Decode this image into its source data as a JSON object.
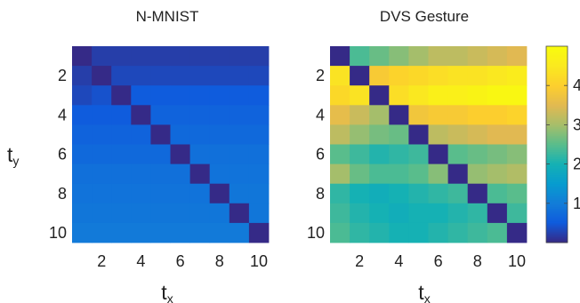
{
  "chart_data": [
    {
      "type": "heatmap",
      "title": "N-MNIST",
      "xlabel": "t",
      "xlabel_sub": "x",
      "ylabel": "t",
      "ylabel_sub": "y",
      "x_ticks": [
        "2",
        "4",
        "6",
        "8",
        "10"
      ],
      "y_ticks": [
        "2",
        "4",
        "6",
        "8",
        "10"
      ],
      "size": 10,
      "colormap": "parula",
      "clim": [
        0,
        5
      ],
      "values": [
        [
          0.0,
          0.2,
          0.2,
          0.2,
          0.2,
          0.2,
          0.2,
          0.2,
          0.2,
          0.2
        ],
        [
          0.2,
          0.0,
          0.3,
          0.3,
          0.3,
          0.3,
          0.3,
          0.3,
          0.3,
          0.3
        ],
        [
          0.3,
          0.4,
          0.0,
          0.5,
          0.5,
          0.5,
          0.5,
          0.5,
          0.5,
          0.5
        ],
        [
          0.5,
          0.5,
          0.5,
          0.0,
          0.6,
          0.6,
          0.6,
          0.6,
          0.6,
          0.6
        ],
        [
          0.6,
          0.6,
          0.6,
          0.6,
          0.0,
          0.7,
          0.7,
          0.7,
          0.7,
          0.7
        ],
        [
          0.7,
          0.7,
          0.7,
          0.7,
          0.7,
          0.0,
          0.8,
          0.8,
          0.8,
          0.8
        ],
        [
          0.8,
          0.8,
          0.8,
          0.8,
          0.8,
          0.8,
          0.0,
          0.85,
          0.85,
          0.85
        ],
        [
          0.85,
          0.85,
          0.85,
          0.85,
          0.85,
          0.85,
          0.85,
          0.0,
          0.9,
          0.9
        ],
        [
          0.9,
          0.9,
          0.9,
          0.9,
          0.9,
          0.9,
          0.9,
          0.9,
          0.0,
          0.9
        ],
        [
          0.95,
          0.95,
          0.95,
          0.95,
          0.95,
          0.95,
          0.95,
          0.95,
          0.95,
          0.0
        ]
      ]
    },
    {
      "type": "heatmap",
      "title": "DVS Gesture",
      "xlabel": "t",
      "xlabel_sub": "x",
      "x_ticks": [
        "2",
        "4",
        "6",
        "8",
        "10"
      ],
      "y_ticks": [
        "2",
        "4",
        "6",
        "8",
        "10"
      ],
      "size": 10,
      "colormap": "parula",
      "clim": [
        0,
        5
      ],
      "values": [
        [
          0.0,
          2.4,
          2.6,
          2.8,
          3.0,
          3.2,
          3.2,
          3.3,
          3.4,
          3.5
        ],
        [
          4.4,
          0.0,
          3.9,
          4.1,
          4.2,
          4.3,
          4.4,
          4.4,
          4.5,
          4.6
        ],
        [
          4.2,
          4.4,
          0.0,
          4.3,
          4.5,
          4.7,
          4.7,
          4.8,
          4.9,
          4.9
        ],
        [
          3.6,
          3.3,
          3.0,
          0.0,
          3.8,
          3.9,
          3.9,
          4.0,
          4.0,
          4.1
        ],
        [
          3.2,
          2.9,
          2.7,
          2.6,
          0.0,
          3.2,
          3.3,
          3.4,
          3.5,
          3.5
        ],
        [
          2.5,
          2.3,
          2.1,
          2.2,
          2.3,
          0.0,
          2.5,
          2.6,
          2.7,
          2.8
        ],
        [
          3.0,
          2.6,
          2.4,
          2.4,
          2.5,
          2.8,
          0.0,
          2.9,
          3.0,
          3.1
        ],
        [
          2.2,
          2.0,
          1.9,
          2.0,
          2.1,
          2.2,
          2.3,
          0.0,
          2.4,
          2.5
        ],
        [
          2.3,
          2.1,
          2.0,
          1.9,
          2.0,
          2.0,
          2.1,
          2.2,
          0.0,
          2.3
        ],
        [
          2.4,
          2.2,
          2.1,
          2.0,
          2.0,
          2.1,
          2.2,
          2.3,
          2.4,
          0.0
        ]
      ]
    }
  ],
  "colorbar": {
    "ticks": [
      "1",
      "2",
      "3",
      "4"
    ],
    "range": [
      0,
      5
    ]
  }
}
